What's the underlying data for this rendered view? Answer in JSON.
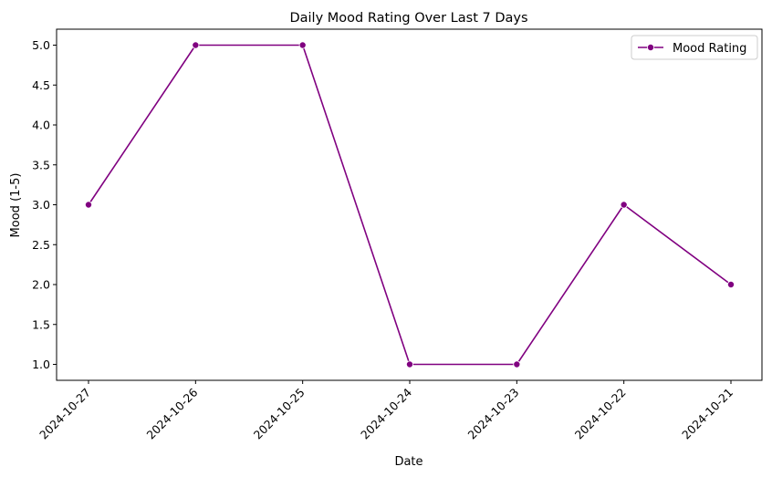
{
  "chart_data": {
    "type": "line",
    "title": "Daily Mood Rating Over Last 7 Days",
    "xlabel": "Date",
    "ylabel": "Mood (1-5)",
    "categories": [
      "2024-10-27",
      "2024-10-26",
      "2024-10-25",
      "2024-10-24",
      "2024-10-23",
      "2024-10-22",
      "2024-10-21"
    ],
    "series": [
      {
        "name": "Mood Rating",
        "values": [
          3,
          5,
          5,
          1,
          1,
          3,
          2
        ]
      }
    ],
    "ylim": [
      0.8,
      5.2
    ],
    "yticks": [
      1.0,
      1.5,
      2.0,
      2.5,
      3.0,
      3.5,
      4.0,
      4.5,
      5.0
    ],
    "grid": false,
    "legend_position": "top-right",
    "line_color": "#800080",
    "marker": "circle"
  }
}
